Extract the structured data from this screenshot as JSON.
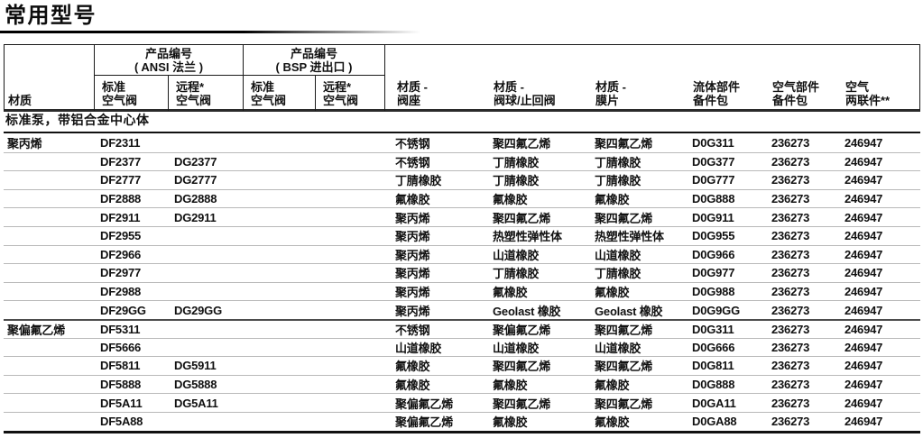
{
  "page_title": "常用型号",
  "colors": {
    "text": "#111111",
    "table_border": "#1a1a1a",
    "row_divider": "#b9b9b9"
  },
  "table": {
    "header": {
      "col_material": "材质",
      "group_ansi": {
        "line1": "产品编号",
        "line2": "( ANSI 法兰 )"
      },
      "group_bsp": {
        "line1": "产品编号",
        "line2": "( BSP 进出口 )"
      },
      "sub_standard": {
        "line1": "标准",
        "line2": "空气阀"
      },
      "sub_remote": {
        "line1": "远程*",
        "line2": "空气阀"
      },
      "col_seat": {
        "line1": "材质 -",
        "line2": "阀座"
      },
      "col_ball": {
        "line1": "材质 -",
        "line2": "阀球/止回阀"
      },
      "col_diaphragm": {
        "line1": "材质 -",
        "line2": "膜片"
      },
      "col_fluid_kit": {
        "line1": "流体部件",
        "line2": "备件包"
      },
      "col_air_kit": {
        "line1": "空气部件",
        "line2": "备件包"
      },
      "col_air_combo": {
        "line1": "空气",
        "line2": "两联件**"
      }
    },
    "section_header": "标准泵，带铝合金中心体",
    "group_start_rows": [
      10
    ],
    "rows": [
      [
        "聚丙烯",
        "DF2311",
        "",
        "",
        "",
        "不锈钢",
        "聚四氟乙烯",
        "聚四氟乙烯",
        "D0G311",
        "236273",
        "246947"
      ],
      [
        "",
        "DF2377",
        "DG2377",
        "",
        "",
        "不锈钢",
        "丁腈橡胶",
        "丁腈橡胶",
        "D0G377",
        "236273",
        "246947"
      ],
      [
        "",
        "DF2777",
        "DG2777",
        "",
        "",
        "丁腈橡胶",
        "丁腈橡胶",
        "丁腈橡胶",
        "D0G777",
        "236273",
        "246947"
      ],
      [
        "",
        "DF2888",
        "DG2888",
        "",
        "",
        "氟橡胶",
        "氟橡胶",
        "氟橡胶",
        "D0G888",
        "236273",
        "246947"
      ],
      [
        "",
        "DF2911",
        "DG2911",
        "",
        "",
        "聚丙烯",
        "聚四氟乙烯",
        "聚四氟乙烯",
        "D0G911",
        "236273",
        "246947"
      ],
      [
        "",
        "DF2955",
        "",
        "",
        "",
        "聚丙烯",
        "热塑性弹性体",
        "热塑性弹性体",
        "D0G955",
        "236273",
        "246947"
      ],
      [
        "",
        "DF2966",
        "",
        "",
        "",
        "聚丙烯",
        "山道橡胶",
        "山道橡胶",
        "D0G966",
        "236273",
        "246947"
      ],
      [
        "",
        "DF2977",
        "",
        "",
        "",
        "聚丙烯",
        "丁腈橡胶",
        "丁腈橡胶",
        "D0G977",
        "236273",
        "246947"
      ],
      [
        "",
        "DF2988",
        "",
        "",
        "",
        "聚丙烯",
        "氟橡胶",
        "氟橡胶",
        "D0G988",
        "236273",
        "246947"
      ],
      [
        "",
        "DF29GG",
        "DG29GG",
        "",
        "",
        "聚丙烯",
        "Geolast 橡胶",
        "Geolast 橡胶",
        "D0G9GG",
        "236273",
        "246947"
      ],
      [
        "聚偏氟乙烯",
        "DF5311",
        "",
        "",
        "",
        "不锈钢",
        "聚偏氟乙烯",
        "聚四氟乙烯",
        "D0G311",
        "236273",
        "246947"
      ],
      [
        "",
        "DF5666",
        "",
        "",
        "",
        "山道橡胶",
        "山道橡胶",
        "山道橡胶",
        "D0G666",
        "236273",
        "246947"
      ],
      [
        "",
        "DF5811",
        "DG5911",
        "",
        "",
        "氟橡胶",
        "聚四氟乙烯",
        "聚四氟乙烯",
        "D0G811",
        "236273",
        "246947"
      ],
      [
        "",
        "DF5888",
        "DG5888",
        "",
        "",
        "氟橡胶",
        "氟橡胶",
        "氟橡胶",
        "D0G888",
        "236273",
        "246947"
      ],
      [
        "",
        "DF5A11",
        "DG5A11",
        "",
        "",
        "聚偏氟乙烯",
        "聚四氟乙烯",
        "聚四氟乙烯",
        "D0GA11",
        "236273",
        "246947"
      ],
      [
        "",
        "DF5A88",
        "",
        "",
        "",
        "聚偏氟乙烯",
        "氟橡胶",
        "氟橡胶",
        "D0GA88",
        "236273",
        "246947"
      ]
    ]
  }
}
